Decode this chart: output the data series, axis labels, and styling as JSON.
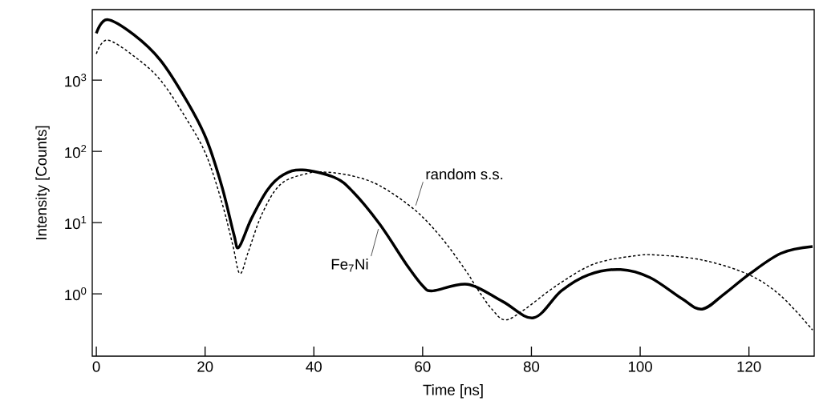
{
  "chart_data": {
    "type": "line",
    "xlabel": "Time [ns]",
    "ylabel": "Intensity [Counts]",
    "log": "y",
    "xlim": [
      -0.75,
      132
    ],
    "xticks": [
      0,
      20,
      40,
      60,
      80,
      100,
      120
    ],
    "ylim": [
      0.133,
      9800
    ],
    "yticks": [
      {
        "value": 1,
        "label": "10$^{0}$"
      },
      {
        "value": 10,
        "label": "10$^{1}$"
      },
      {
        "value": 100,
        "label": "10$^{2}$"
      },
      {
        "value": 1000,
        "label": "10$^{3}$"
      }
    ],
    "series": [
      {
        "name": "Fe$_{7}$Ni",
        "color": "#000000",
        "line_style": "solid",
        "x": [
          0,
          2.0,
          6.9,
          11.8,
          16.7,
          20.2,
          23.1,
          25.3,
          26.2,
          28.5,
          31.5,
          34.4,
          37.9,
          43.8,
          47.2,
          52.1,
          57.0,
          60.0,
          61.9,
          68.3,
          74.7,
          80.4,
          85.5,
          90.5,
          96.4,
          101.8,
          107.7,
          111.4,
          115.5,
          120.0,
          125.9,
          131.7
        ],
        "values": [
          4550,
          7100,
          4350,
          1900,
          500,
          151,
          32,
          6.8,
          4.5,
          11.3,
          29,
          47,
          55,
          43,
          27,
          9.5,
          2.6,
          1.3,
          1.1,
          1.36,
          0.78,
          0.46,
          1.1,
          1.85,
          2.19,
          1.69,
          0.85,
          0.61,
          1.0,
          1.87,
          3.7,
          4.6
        ]
      },
      {
        "name": "random s.s.",
        "color": "#000000",
        "line_style": "dashed",
        "x": [
          0,
          2.0,
          6.9,
          11.8,
          16.7,
          20.2,
          23.1,
          25.1,
          26.4,
          28.0,
          30.5,
          33.9,
          38.8,
          42.3,
          47.2,
          52.1,
          58.5,
          63.4,
          67.8,
          70.3,
          72.8,
          75.2,
          78.7,
          84.6,
          91.4,
          98.8,
          103.2,
          111.6,
          120.0,
          125.9,
          131.7
        ],
        "values": [
          2350,
          3650,
          2180,
          1000,
          275,
          89,
          19,
          4.8,
          1.92,
          4.0,
          13.4,
          34.6,
          49,
          51,
          45,
          33,
          15.2,
          6.2,
          2.19,
          1.1,
          0.6,
          0.43,
          0.6,
          1.3,
          2.6,
          3.4,
          3.5,
          2.96,
          1.85,
          0.93,
          0.31
        ]
      }
    ]
  }
}
